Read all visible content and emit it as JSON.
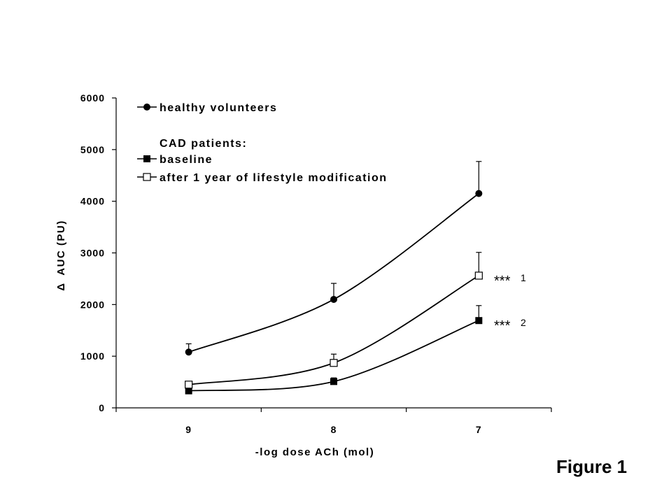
{
  "figure_label": "Figure 1",
  "chart_data": {
    "type": "line",
    "xlabel": "-log dose ACh (mol)",
    "ylabel_symbol": "Δ",
    "ylabel": "AUC (PU)",
    "categories": [
      "9",
      "8",
      "7"
    ],
    "ylim": [
      0,
      6000
    ],
    "yticks": [
      "0",
      "1000",
      "2000",
      "3000",
      "4000",
      "5000",
      "6000"
    ],
    "grid": false,
    "legend_position": "top-left",
    "legend_group_heading": "CAD patients:",
    "series": [
      {
        "name": "healthy volunteers",
        "marker": "filled-circle",
        "values": [
          1080,
          2100,
          4150
        ],
        "error_plus": [
          160,
          310,
          620
        ]
      },
      {
        "name": "baseline",
        "marker": "filled-square",
        "values": [
          330,
          510,
          1690
        ],
        "error_plus": [
          0,
          70,
          290
        ]
      },
      {
        "name": "after 1 year of lifestyle modification",
        "marker": "open-square",
        "values": [
          450,
          870,
          2560
        ],
        "error_plus": [
          60,
          170,
          450
        ]
      }
    ],
    "annotations": [
      {
        "text": "***",
        "sup": "1",
        "series": 2
      },
      {
        "text": "***",
        "sup": "2",
        "series": 1
      }
    ]
  }
}
